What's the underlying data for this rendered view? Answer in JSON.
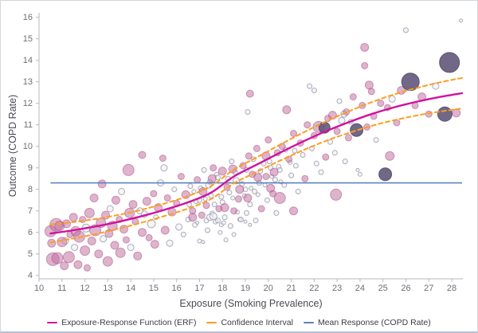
{
  "chart": {
    "x_axis_title": "Exposure (Smoking Prevalence)",
    "y_axis_title": "Outcome (COPD Rate)",
    "legend": [
      {
        "label": "Exposure-Response Function (ERF)",
        "color": "#d1119f"
      },
      {
        "label": "Confidence Interval",
        "color": "#ff9d1e"
      },
      {
        "label": "Mean Response (COPD Rate)",
        "color": "#5b83bd"
      }
    ]
  },
  "chart_data": {
    "type": "scatter",
    "title": "",
    "xlabel": "Exposure (Smoking Prevalence)",
    "ylabel": "Outcome (COPD Rate)",
    "xlim": [
      10,
      28.5
    ],
    "ylim": [
      4,
      16.2
    ],
    "x_ticks": [
      10,
      11,
      12,
      13,
      14,
      15,
      16,
      17,
      18,
      19,
      20,
      21,
      22,
      23,
      24,
      25,
      26,
      27,
      28
    ],
    "y_ticks": [
      4,
      5,
      6,
      7,
      8,
      9,
      10,
      11,
      12,
      13,
      14,
      15,
      16
    ],
    "grid": false,
    "legend_position": "bottom",
    "axis_color": "#b8b8c0",
    "tick_label_color": "#6e6e78",
    "mean_line": {
      "y": 8.3,
      "x_start": 10.5,
      "x_end": 28.45,
      "color": "#5b83bd",
      "width": 1.6
    },
    "erf_curve": {
      "color": "#d1119f",
      "width": 2.4,
      "x": [
        10.5,
        11.5,
        12.5,
        13.5,
        14.5,
        15.5,
        16.5,
        17.5,
        18.5,
        19.5,
        20.5,
        21.5,
        22.5,
        23.5,
        24.5,
        25.5,
        26.5,
        27.5,
        28.45
      ],
      "y": [
        5.95,
        6.1,
        6.28,
        6.5,
        6.76,
        7.06,
        7.4,
        7.85,
        8.6,
        9.15,
        9.7,
        10.22,
        10.7,
        11.12,
        11.5,
        11.82,
        12.08,
        12.3,
        12.47
      ]
    },
    "confidence_interval": {
      "color": "#ff9d1e",
      "width": 2,
      "dash": "5 4",
      "x": [
        10.5,
        11.5,
        12.5,
        13.5,
        14.5,
        15.5,
        16.5,
        17.5,
        18.5,
        19.5,
        20.5,
        21.5,
        22.5,
        23.5,
        24.5,
        25.5,
        26.5,
        27.5,
        28.45
      ],
      "upper": [
        6.37,
        6.48,
        6.63,
        6.82,
        7.06,
        7.35,
        7.69,
        8.15,
        8.92,
        9.49,
        10.07,
        10.63,
        11.15,
        11.62,
        12.05,
        12.42,
        12.72,
        12.98,
        13.18
      ],
      "lower": [
        5.53,
        5.72,
        5.93,
        6.18,
        6.46,
        6.77,
        7.11,
        7.55,
        8.28,
        8.81,
        9.33,
        9.81,
        10.25,
        10.62,
        10.95,
        11.22,
        11.44,
        11.62,
        11.76
      ]
    },
    "point_styles": {
      "g": {
        "fill": "#ededf4",
        "fill_opacity": 0.55,
        "stroke": "#a3a3b3",
        "stroke_opacity": 0.9,
        "stroke_width": 1
      },
      "p": {
        "fill": "#bd6a9b",
        "fill_opacity": 0.5,
        "stroke": "#ad5287",
        "stroke_opacity": 0.55,
        "stroke_width": 1
      },
      "d": {
        "fill": "#5d5376",
        "fill_opacity": 0.88,
        "stroke": "#544b6b",
        "stroke_opacity": 0.9,
        "stroke_width": 1
      }
    },
    "points": [
      [
        10.5,
        6.05,
        7,
        "p"
      ],
      [
        10.55,
        5.5,
        5,
        "p"
      ],
      [
        10.6,
        4.75,
        8,
        "p"
      ],
      [
        10.8,
        4.8,
        7,
        "p"
      ],
      [
        10.75,
        6.35,
        8,
        "p"
      ],
      [
        10.9,
        6.3,
        6,
        "p"
      ],
      [
        11.0,
        5.55,
        6,
        "p"
      ],
      [
        11.1,
        4.45,
        5,
        "p"
      ],
      [
        11.15,
        5.6,
        4,
        "g"
      ],
      [
        11.2,
        6.4,
        5,
        "p"
      ],
      [
        11.3,
        4.85,
        7,
        "p"
      ],
      [
        11.35,
        5.9,
        4,
        "p"
      ],
      [
        11.5,
        6.7,
        5,
        "p"
      ],
      [
        11.55,
        5.3,
        4,
        "g"
      ],
      [
        11.6,
        6.05,
        6,
        "p"
      ],
      [
        11.7,
        4.5,
        5,
        "p"
      ],
      [
        11.75,
        5.8,
        7,
        "p"
      ],
      [
        11.9,
        6.6,
        4,
        "p"
      ],
      [
        12.0,
        5.15,
        6,
        "p"
      ],
      [
        12.05,
        6.2,
        5,
        "g"
      ],
      [
        12.1,
        4.35,
        4,
        "p"
      ],
      [
        12.2,
        6.9,
        6,
        "p"
      ],
      [
        12.3,
        5.6,
        5,
        "p"
      ],
      [
        12.4,
        7.6,
        5,
        "p"
      ],
      [
        12.45,
        6.1,
        7,
        "p"
      ],
      [
        12.6,
        5.0,
        5,
        "p"
      ],
      [
        12.7,
        6.45,
        6,
        "p"
      ],
      [
        12.75,
        8.25,
        5,
        "p"
      ],
      [
        12.8,
        5.7,
        4,
        "g"
      ],
      [
        12.9,
        6.8,
        5,
        "p"
      ],
      [
        13.0,
        4.65,
        6,
        "p"
      ],
      [
        13.05,
        5.95,
        5,
        "p"
      ],
      [
        13.1,
        7.1,
        4,
        "g"
      ],
      [
        13.2,
        6.3,
        6,
        "p"
      ],
      [
        13.3,
        5.4,
        5,
        "p"
      ],
      [
        13.35,
        7.5,
        5,
        "p"
      ],
      [
        13.5,
        6.6,
        4,
        "p"
      ],
      [
        13.55,
        5.05,
        6,
        "p"
      ],
      [
        13.6,
        7.9,
        4,
        "g"
      ],
      [
        13.7,
        6.15,
        5,
        "p"
      ],
      [
        13.8,
        5.65,
        4,
        "p"
      ],
      [
        13.9,
        8.9,
        7,
        "p"
      ],
      [
        13.95,
        6.9,
        6,
        "p"
      ],
      [
        14.0,
        5.3,
        4,
        "g"
      ],
      [
        14.1,
        7.3,
        5,
        "p"
      ],
      [
        14.2,
        6.5,
        4,
        "p"
      ],
      [
        14.3,
        4.9,
        5,
        "p"
      ],
      [
        14.4,
        7.0,
        4,
        "g"
      ],
      [
        14.5,
        9.6,
        4.5,
        "p"
      ],
      [
        14.5,
        6.0,
        5,
        "p"
      ],
      [
        14.6,
        6.85,
        4,
        "g"
      ],
      [
        14.7,
        7.45,
        5,
        "p"
      ],
      [
        14.8,
        5.75,
        4,
        "p"
      ],
      [
        14.9,
        6.4,
        5,
        "g"
      ],
      [
        15.0,
        7.8,
        4,
        "p"
      ],
      [
        15.05,
        5.45,
        5,
        "p"
      ],
      [
        15.1,
        6.7,
        3,
        "g"
      ],
      [
        15.2,
        7.15,
        5,
        "p"
      ],
      [
        15.3,
        8.3,
        4,
        "g"
      ],
      [
        15.4,
        9.45,
        4,
        "p"
      ],
      [
        15.45,
        9.0,
        4,
        "g"
      ],
      [
        15.5,
        6.1,
        5,
        "p"
      ],
      [
        15.6,
        7.6,
        4,
        "p"
      ],
      [
        15.7,
        5.5,
        4,
        "g"
      ],
      [
        15.8,
        6.95,
        5,
        "p"
      ],
      [
        15.9,
        8.0,
        3,
        "g"
      ],
      [
        16.0,
        7.35,
        4,
        "p"
      ],
      [
        16.1,
        6.25,
        4,
        "g"
      ],
      [
        16.2,
        8.6,
        4,
        "p"
      ],
      [
        16.3,
        5.9,
        3,
        "g"
      ],
      [
        16.4,
        7.75,
        5,
        "p"
      ],
      [
        16.5,
        6.6,
        3,
        "g"
      ],
      [
        16.55,
        7.3,
        3,
        "g"
      ],
      [
        16.6,
        8.15,
        3,
        "g"
      ],
      [
        16.7,
        6.7,
        5,
        "p"
      ],
      [
        16.7,
        7.0,
        4,
        "p"
      ],
      [
        16.75,
        7.9,
        2.5,
        "g"
      ],
      [
        16.8,
        6.35,
        3,
        "g"
      ],
      [
        16.85,
        7.45,
        3,
        "g"
      ],
      [
        16.9,
        8.45,
        4,
        "p"
      ],
      [
        16.9,
        6.45,
        2,
        "g"
      ],
      [
        17.0,
        7.5,
        3,
        "g"
      ],
      [
        17.0,
        5.6,
        2.5,
        "g"
      ],
      [
        17.05,
        8.05,
        3,
        "g"
      ],
      [
        17.1,
        6.8,
        4,
        "p"
      ],
      [
        17.15,
        7.9,
        5,
        "p"
      ],
      [
        17.15,
        5.55,
        2,
        "g"
      ],
      [
        17.2,
        8.9,
        3,
        "g"
      ],
      [
        17.25,
        7.55,
        2.5,
        "g"
      ],
      [
        17.3,
        7.25,
        4,
        "p"
      ],
      [
        17.3,
        6.55,
        3,
        "g"
      ],
      [
        17.35,
        6.1,
        3,
        "g"
      ],
      [
        17.4,
        8.2,
        4,
        "g"
      ],
      [
        17.45,
        8.35,
        3,
        "g"
      ],
      [
        17.45,
        6.7,
        4,
        "g"
      ],
      [
        17.5,
        7.7,
        3,
        "g"
      ],
      [
        17.55,
        8.5,
        5,
        "p"
      ],
      [
        17.55,
        6.9,
        2.5,
        "g"
      ],
      [
        17.6,
        9.0,
        4,
        "p"
      ],
      [
        17.6,
        6.75,
        4.5,
        "g"
      ],
      [
        17.65,
        7.3,
        3,
        "g"
      ],
      [
        17.7,
        6.5,
        3,
        "g"
      ],
      [
        17.75,
        8.7,
        2.5,
        "g"
      ],
      [
        17.8,
        8.55,
        3,
        "g"
      ],
      [
        17.8,
        6.55,
        3,
        "g"
      ],
      [
        17.85,
        7.1,
        4,
        "p"
      ],
      [
        17.9,
        6.0,
        2.5,
        "g"
      ],
      [
        17.95,
        7.65,
        3,
        "g"
      ],
      [
        17.95,
        6.35,
        2.5,
        "g"
      ],
      [
        18.0,
        8.85,
        5,
        "p"
      ],
      [
        18.0,
        7.4,
        3,
        "g"
      ],
      [
        18.05,
        6.45,
        2.5,
        "g"
      ],
      [
        18.1,
        7.15,
        5,
        "p"
      ],
      [
        18.1,
        6.7,
        3,
        "g"
      ],
      [
        18.15,
        5.65,
        2.5,
        "g"
      ],
      [
        18.2,
        8.1,
        4,
        "p"
      ],
      [
        18.25,
        8.5,
        3,
        "g"
      ],
      [
        18.3,
        7.85,
        3,
        "g"
      ],
      [
        18.35,
        6.3,
        3,
        "g"
      ],
      [
        18.4,
        9.3,
        3,
        "g"
      ],
      [
        18.45,
        8.95,
        5,
        "p"
      ],
      [
        18.45,
        7.6,
        2.5,
        "g"
      ],
      [
        18.5,
        7.0,
        4,
        "p"
      ],
      [
        18.5,
        5.9,
        2.5,
        "g"
      ],
      [
        18.55,
        8.8,
        3,
        "g"
      ],
      [
        18.6,
        8.4,
        4,
        "g"
      ],
      [
        18.65,
        6.95,
        2.5,
        "g"
      ],
      [
        18.7,
        7.55,
        4,
        "p"
      ],
      [
        18.75,
        8.0,
        5,
        "p"
      ],
      [
        18.75,
        6.6,
        2.5,
        "g"
      ],
      [
        18.8,
        6.6,
        3,
        "g"
      ],
      [
        18.85,
        8.25,
        3,
        "g"
      ],
      [
        18.9,
        9.1,
        4,
        "p"
      ],
      [
        18.95,
        7.7,
        2.5,
        "g"
      ],
      [
        19.0,
        8.0,
        3,
        "g"
      ],
      [
        19.0,
        6.5,
        2,
        "g"
      ],
      [
        19.05,
        6.9,
        3,
        "g"
      ],
      [
        19.05,
        8.9,
        3,
        "g"
      ],
      [
        19.1,
        11.6,
        3,
        "g"
      ],
      [
        19.1,
        7.6,
        5,
        "p"
      ],
      [
        19.15,
        9.55,
        4,
        "p"
      ],
      [
        19.2,
        12.45,
        4.5,
        "p"
      ],
      [
        19.2,
        7.3,
        3,
        "g"
      ],
      [
        19.2,
        6.35,
        2,
        "g"
      ],
      [
        19.25,
        8.05,
        2.5,
        "g"
      ],
      [
        19.3,
        8.7,
        4,
        "p"
      ],
      [
        19.35,
        9.4,
        3,
        "g"
      ],
      [
        19.4,
        7.9,
        3,
        "g"
      ],
      [
        19.45,
        6.55,
        3,
        "g"
      ],
      [
        19.5,
        9.9,
        4,
        "p"
      ],
      [
        19.55,
        8.55,
        5,
        "p"
      ],
      [
        19.55,
        7.75,
        2.5,
        "g"
      ],
      [
        19.6,
        8.3,
        3,
        "g"
      ],
      [
        19.65,
        8.85,
        3,
        "g"
      ],
      [
        19.7,
        7.1,
        4,
        "p"
      ],
      [
        19.8,
        9.2,
        3,
        "g"
      ],
      [
        19.85,
        8.2,
        2.5,
        "g"
      ],
      [
        19.9,
        9.55,
        5,
        "p"
      ],
      [
        19.9,
        8.6,
        4,
        "p"
      ],
      [
        19.95,
        7.5,
        3,
        "g"
      ],
      [
        20.0,
        10.3,
        4,
        "p"
      ],
      [
        20.05,
        9.3,
        3,
        "g"
      ],
      [
        20.1,
        8.05,
        5,
        "p"
      ],
      [
        20.1,
        9.0,
        3,
        "g"
      ],
      [
        20.15,
        8.6,
        2.5,
        "g"
      ],
      [
        20.2,
        7.8,
        4,
        "p"
      ],
      [
        20.25,
        8.8,
        5,
        "p"
      ],
      [
        20.3,
        8.45,
        3,
        "g"
      ],
      [
        20.35,
        6.9,
        3,
        "g"
      ],
      [
        20.4,
        9.7,
        4,
        "p"
      ],
      [
        20.45,
        9.05,
        3,
        "g"
      ],
      [
        20.5,
        7.6,
        7,
        "p"
      ],
      [
        20.5,
        8.9,
        3,
        "g"
      ],
      [
        20.55,
        8.35,
        2.5,
        "g"
      ],
      [
        20.6,
        10.0,
        4,
        "p"
      ],
      [
        20.7,
        8.2,
        3,
        "g"
      ],
      [
        20.75,
        9.85,
        3,
        "g"
      ],
      [
        20.8,
        11.7,
        5,
        "p"
      ],
      [
        20.9,
        9.4,
        4,
        "p"
      ],
      [
        20.95,
        9.25,
        2.5,
        "g"
      ],
      [
        21.0,
        8.65,
        3,
        "g"
      ],
      [
        21.1,
        10.6,
        4,
        "p"
      ],
      [
        21.1,
        7.0,
        5,
        "p"
      ],
      [
        21.15,
        9.8,
        3,
        "g"
      ],
      [
        21.2,
        9.1,
        3,
        "g"
      ],
      [
        21.3,
        7.9,
        3,
        "g"
      ],
      [
        21.4,
        10.15,
        4,
        "p"
      ],
      [
        21.5,
        9.6,
        3,
        "g"
      ],
      [
        21.6,
        8.5,
        4,
        "p"
      ],
      [
        21.7,
        11.0,
        4,
        "p"
      ],
      [
        21.8,
        12.8,
        3,
        "g"
      ],
      [
        21.9,
        9.9,
        3,
        "g"
      ],
      [
        22.0,
        12.6,
        3,
        "g"
      ],
      [
        22.0,
        10.5,
        4,
        "p"
      ],
      [
        22.1,
        9.2,
        3,
        "g"
      ],
      [
        22.2,
        10.9,
        7,
        "p"
      ],
      [
        22.3,
        8.8,
        3,
        "g"
      ],
      [
        22.45,
        10.87,
        7,
        "d"
      ],
      [
        22.5,
        9.5,
        4,
        "p"
      ],
      [
        22.6,
        11.3,
        4,
        "p"
      ],
      [
        22.7,
        10.2,
        3,
        "g"
      ],
      [
        22.8,
        11.45,
        5,
        "p"
      ],
      [
        22.9,
        9.7,
        3,
        "g"
      ],
      [
        22.95,
        7.75,
        7,
        "p"
      ],
      [
        23.0,
        10.7,
        4,
        "p"
      ],
      [
        23.1,
        12.1,
        3,
        "g"
      ],
      [
        23.2,
        11.2,
        4,
        "g"
      ],
      [
        23.3,
        11.5,
        4,
        "g"
      ],
      [
        23.35,
        9.3,
        3,
        "g"
      ],
      [
        23.4,
        11.6,
        4,
        "p"
      ],
      [
        23.5,
        10.4,
        4,
        "p"
      ],
      [
        23.6,
        11.15,
        3,
        "g"
      ],
      [
        23.7,
        12.3,
        4,
        "p"
      ],
      [
        23.85,
        10.76,
        8,
        "d"
      ],
      [
        23.9,
        8.9,
        2,
        "g"
      ],
      [
        24.0,
        8.7,
        2.5,
        "g"
      ],
      [
        24.1,
        11.9,
        4,
        "p"
      ],
      [
        24.2,
        14.6,
        5,
        "p"
      ],
      [
        24.2,
        13.75,
        4,
        "p"
      ],
      [
        24.3,
        10.9,
        4,
        "p"
      ],
      [
        24.4,
        12.85,
        5,
        "p"
      ],
      [
        24.5,
        12.55,
        4,
        "p"
      ],
      [
        24.6,
        11.4,
        4,
        "p"
      ],
      [
        24.7,
        10.3,
        3,
        "g"
      ],
      [
        24.9,
        12.0,
        4,
        "p"
      ],
      [
        25.1,
        8.7,
        8,
        "d"
      ],
      [
        25.2,
        11.8,
        4,
        "p"
      ],
      [
        25.3,
        9.55,
        5.5,
        "p"
      ],
      [
        25.4,
        12.2,
        4,
        "g"
      ],
      [
        25.6,
        11.1,
        4,
        "p"
      ],
      [
        25.8,
        12.6,
        5,
        "p"
      ],
      [
        26.0,
        15.4,
        3,
        "g"
      ],
      [
        26.2,
        13.0,
        11,
        "d"
      ],
      [
        26.4,
        11.9,
        4,
        "p"
      ],
      [
        26.7,
        12.3,
        5,
        "p"
      ],
      [
        27.0,
        11.5,
        4,
        "p"
      ],
      [
        27.3,
        12.8,
        4,
        "g"
      ],
      [
        27.7,
        11.5,
        9,
        "d"
      ],
      [
        27.9,
        13.9,
        12.5,
        "d"
      ],
      [
        28.2,
        11.55,
        5,
        "p"
      ],
      [
        28.4,
        15.85,
        2,
        "g"
      ]
    ]
  }
}
